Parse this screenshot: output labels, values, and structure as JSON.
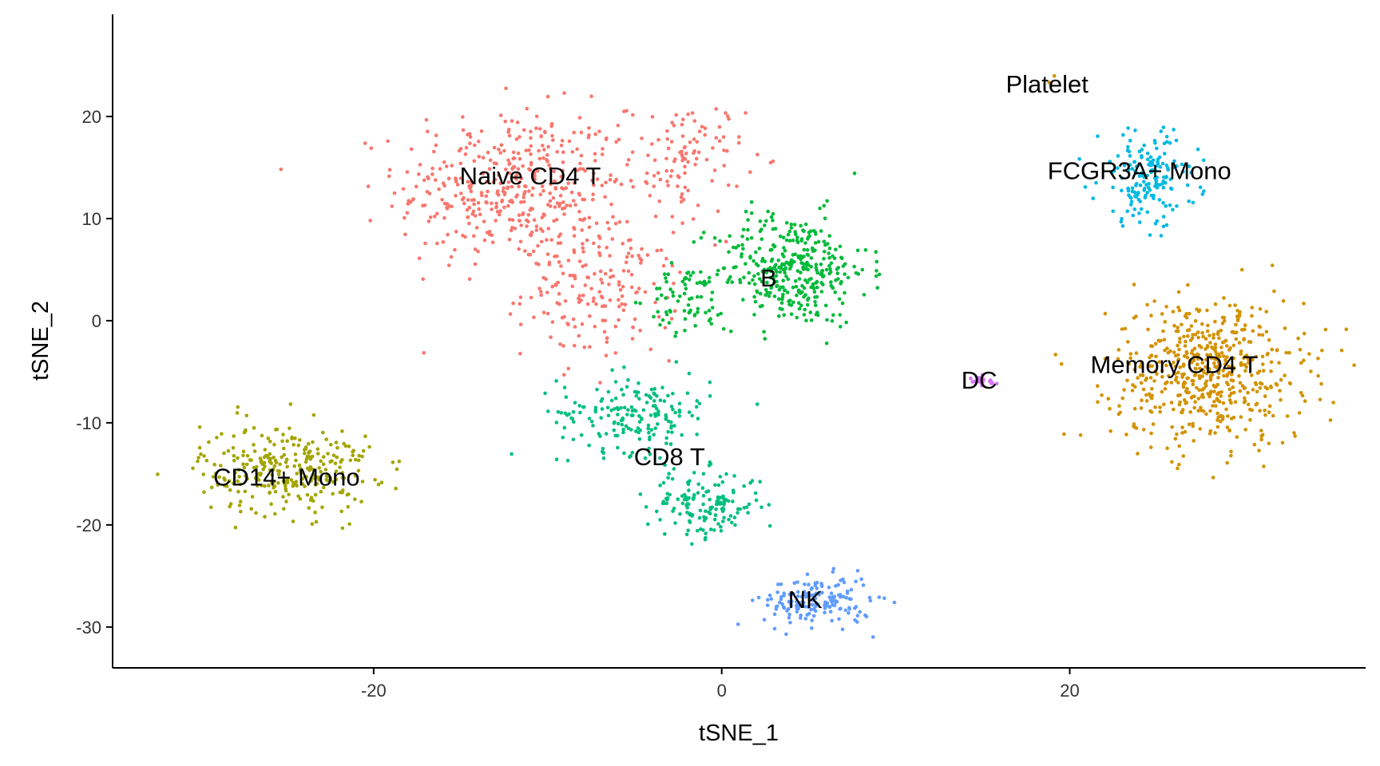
{
  "chart_data": {
    "type": "scatter",
    "title": "",
    "xlabel": "tSNE_1",
    "ylabel": "tSNE_2",
    "xlim": [
      -35,
      37
    ],
    "ylim": [
      -34,
      30
    ],
    "x_ticks": [
      -20,
      0,
      20
    ],
    "y_ticks": [
      -30,
      -20,
      -10,
      0,
      10,
      20
    ],
    "grid": false,
    "legend": "none",
    "clusters": [
      {
        "name": "Naive CD4 T",
        "color": "#F8766D",
        "label_pos": [
          -11,
          14
        ],
        "n_points": 700,
        "blobs": [
          [
            -12,
            13,
            6,
            7,
            0.6
          ],
          [
            -7,
            3,
            4,
            6,
            0.25
          ],
          [
            -2,
            16,
            3,
            5,
            0.15
          ]
        ]
      },
      {
        "name": "B",
        "color": "#00BA38",
        "label_pos": [
          2.7,
          4
        ],
        "n_points": 430,
        "blobs": [
          [
            4,
            5,
            4,
            5,
            0.85
          ],
          [
            -2,
            2,
            2,
            3,
            0.15
          ]
        ]
      },
      {
        "name": "CD8 T",
        "color": "#00BF7D",
        "label_pos": [
          -3,
          -13.5
        ],
        "n_points": 330,
        "blobs": [
          [
            -5,
            -9,
            4,
            3.5,
            0.55
          ],
          [
            -1,
            -18,
            3,
            3,
            0.45
          ]
        ]
      },
      {
        "name": "NK",
        "color": "#619CFF",
        "label_pos": [
          4.8,
          -27.5
        ],
        "n_points": 170,
        "blobs": [
          [
            5.5,
            -27.5,
            2.8,
            2.2,
            1.0
          ]
        ]
      },
      {
        "name": "CD14+ Mono",
        "color": "#A3A500",
        "label_pos": [
          -25,
          -15.5
        ],
        "n_points": 300,
        "blobs": [
          [
            -25,
            -14.5,
            4.5,
            4,
            1.0
          ]
        ]
      },
      {
        "name": "Memory CD4 T",
        "color": "#D39200",
        "label_pos": [
          26,
          -4.5
        ],
        "n_points": 560,
        "blobs": [
          [
            28,
            -5,
            5,
            6.5,
            1.0
          ]
        ]
      },
      {
        "name": "FCGR3A+ Mono",
        "color": "#00B9E3",
        "label_pos": [
          24,
          14.5
        ],
        "n_points": 170,
        "blobs": [
          [
            24.5,
            14,
            2.6,
            4.2,
            1.0
          ]
        ]
      },
      {
        "name": "DC",
        "color": "#DB72FB",
        "label_pos": [
          14.8,
          -6
        ],
        "n_points": 22,
        "blobs": [
          [
            14.8,
            -6,
            1.1,
            0.5,
            1.0
          ]
        ]
      },
      {
        "name": "Platelet",
        "color": "#D39200",
        "label_pos": [
          18.7,
          23
        ],
        "n_points": 3,
        "blobs": [
          [
            19,
            23.5,
            0.6,
            0.6,
            1.0
          ]
        ]
      }
    ]
  }
}
